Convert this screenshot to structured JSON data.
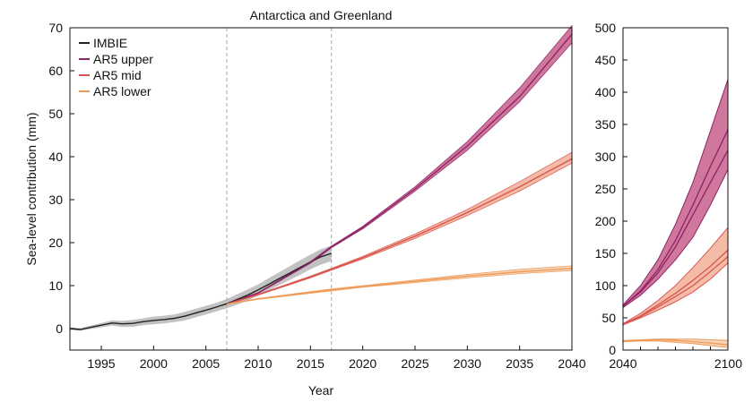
{
  "chart_data": [
    {
      "type": "line",
      "title": "Antarctica and Greenland",
      "xlabel": "Year",
      "ylabel": "Sea-level contribution (mm)",
      "xlim": [
        1992,
        2040
      ],
      "ylim": [
        -5,
        70
      ],
      "xticks": [
        1995,
        2000,
        2005,
        2010,
        2015,
        2020,
        2025,
        2030,
        2035,
        2040
      ],
      "yticks": [
        0,
        10,
        20,
        30,
        40,
        50,
        60,
        70
      ],
      "vertical_reference_lines": [
        2007,
        2017
      ],
      "legend": {
        "position": "top-left",
        "entries": [
          "IMBIE",
          "AR5 upper",
          "AR5 mid",
          "AR5 lower"
        ]
      },
      "series": [
        {
          "name": "IMBIE",
          "color": "#222222",
          "x": [
            1992,
            1993,
            1994,
            1995,
            1996,
            1997,
            1998,
            1999,
            2000,
            2001,
            2002,
            2003,
            2004,
            2005,
            2006,
            2007,
            2008,
            2009,
            2010,
            2011,
            2012,
            2013,
            2014,
            2015,
            2016,
            2017
          ],
          "y": [
            0,
            -0.2,
            0.3,
            0.8,
            1.3,
            1.1,
            1.2,
            1.6,
            1.9,
            2.1,
            2.4,
            2.9,
            3.6,
            4.3,
            5.0,
            5.8,
            6.8,
            7.8,
            9.0,
            10.3,
            11.6,
            12.9,
            14.2,
            15.5,
            16.7,
            17.5
          ],
          "uncertainty": [
            0.3,
            0.3,
            0.4,
            0.5,
            0.6,
            0.7,
            0.8,
            0.8,
            0.9,
            0.9,
            0.9,
            1.0,
            1.0,
            1.0,
            1.0,
            1.1,
            1.2,
            1.3,
            1.3,
            1.4,
            1.5,
            1.6,
            1.7,
            1.7,
            1.8,
            1.8
          ]
        },
        {
          "name": "AR5 upper",
          "color": "#8e2466",
          "band_color": "#c04a7c",
          "x": [
            2007,
            2010,
            2015,
            2017,
            2020,
            2025,
            2030,
            2035,
            2040
          ],
          "y": [
            5.7,
            8.3,
            15.4,
            19.0,
            23.5,
            32.5,
            42.5,
            54.0,
            68.5
          ],
          "lower": [
            5.7,
            8.2,
            15.2,
            18.8,
            23.2,
            32.0,
            41.5,
            52.8,
            66.5
          ],
          "upper": [
            5.7,
            8.4,
            15.6,
            19.2,
            23.8,
            33.0,
            43.5,
            56.0,
            70.5
          ]
        },
        {
          "name": "AR5 mid",
          "color": "#d9544e",
          "band_color": "#f0a58a",
          "x": [
            2007,
            2010,
            2015,
            2017,
            2020,
            2025,
            2030,
            2035,
            2040
          ],
          "y": [
            5.7,
            7.9,
            12.0,
            13.8,
            16.5,
            21.5,
            27.0,
            33.0,
            39.5
          ],
          "lower": [
            5.7,
            7.8,
            11.8,
            13.6,
            16.2,
            21.0,
            26.3,
            32.0,
            38.5
          ],
          "upper": [
            5.7,
            8.0,
            12.2,
            14.0,
            16.8,
            22.0,
            27.7,
            34.2,
            41.0
          ]
        },
        {
          "name": "AR5 lower",
          "color": "#ee9a58",
          "band_color": "#f6c7a0",
          "x": [
            2007,
            2010,
            2015,
            2017,
            2020,
            2025,
            2030,
            2035,
            2040
          ],
          "y": [
            5.7,
            6.9,
            8.4,
            9.0,
            9.8,
            11.0,
            12.2,
            13.2,
            14.0
          ],
          "lower": [
            5.7,
            6.8,
            8.2,
            8.8,
            9.6,
            10.7,
            11.8,
            12.8,
            13.5
          ],
          "upper": [
            5.7,
            7.0,
            8.6,
            9.2,
            10.0,
            11.3,
            12.6,
            13.8,
            14.6
          ]
        }
      ]
    },
    {
      "type": "line",
      "xlim": [
        2040,
        2100
      ],
      "ylim": [
        0,
        500
      ],
      "xticks": [
        2040,
        2100
      ],
      "xminorticks": [
        2050,
        2060,
        2070,
        2080,
        2090
      ],
      "yticks": [
        0,
        50,
        100,
        150,
        200,
        250,
        300,
        350,
        400,
        450,
        500
      ],
      "series": [
        {
          "name": "AR5 upper",
          "color": "#8e2466",
          "band_color": "#c04a7c",
          "x": [
            2040,
            2050,
            2060,
            2070,
            2080,
            2090,
            2100
          ],
          "y": [
            68,
            90,
            120,
            160,
            210,
            260,
            310
          ],
          "lower": [
            66,
            85,
            110,
            140,
            175,
            225,
            280
          ],
          "upper": [
            70,
            100,
            140,
            195,
            260,
            340,
            420
          ],
          "extra_lines": [
            [
              68,
              92,
              125,
              170,
              225,
              285,
              342
            ]
          ]
        },
        {
          "name": "AR5 mid",
          "color": "#d9544e",
          "band_color": "#f0a58a",
          "x": [
            2040,
            2050,
            2060,
            2070,
            2080,
            2090,
            2100
          ],
          "y": [
            40,
            52,
            67,
            83,
            100,
            122,
            145
          ],
          "lower": [
            39,
            50,
            62,
            75,
            90,
            110,
            135
          ],
          "upper": [
            41,
            57,
            77,
            100,
            128,
            158,
            190
          ],
          "extra_lines": [
            [
              40,
              53,
              70,
              88,
              108,
              130,
              155
            ]
          ]
        },
        {
          "name": "AR5 lower",
          "color": "#ee9a58",
          "band_color": "#f6c7a0",
          "x": [
            2040,
            2050,
            2060,
            2070,
            2080,
            2090,
            2100
          ],
          "y": [
            14,
            15,
            16,
            15,
            13,
            11,
            8
          ],
          "lower": [
            13,
            14,
            14,
            12,
            10,
            7,
            4
          ],
          "upper": [
            15,
            16,
            17,
            17,
            17,
            16,
            15
          ]
        }
      ]
    }
  ]
}
